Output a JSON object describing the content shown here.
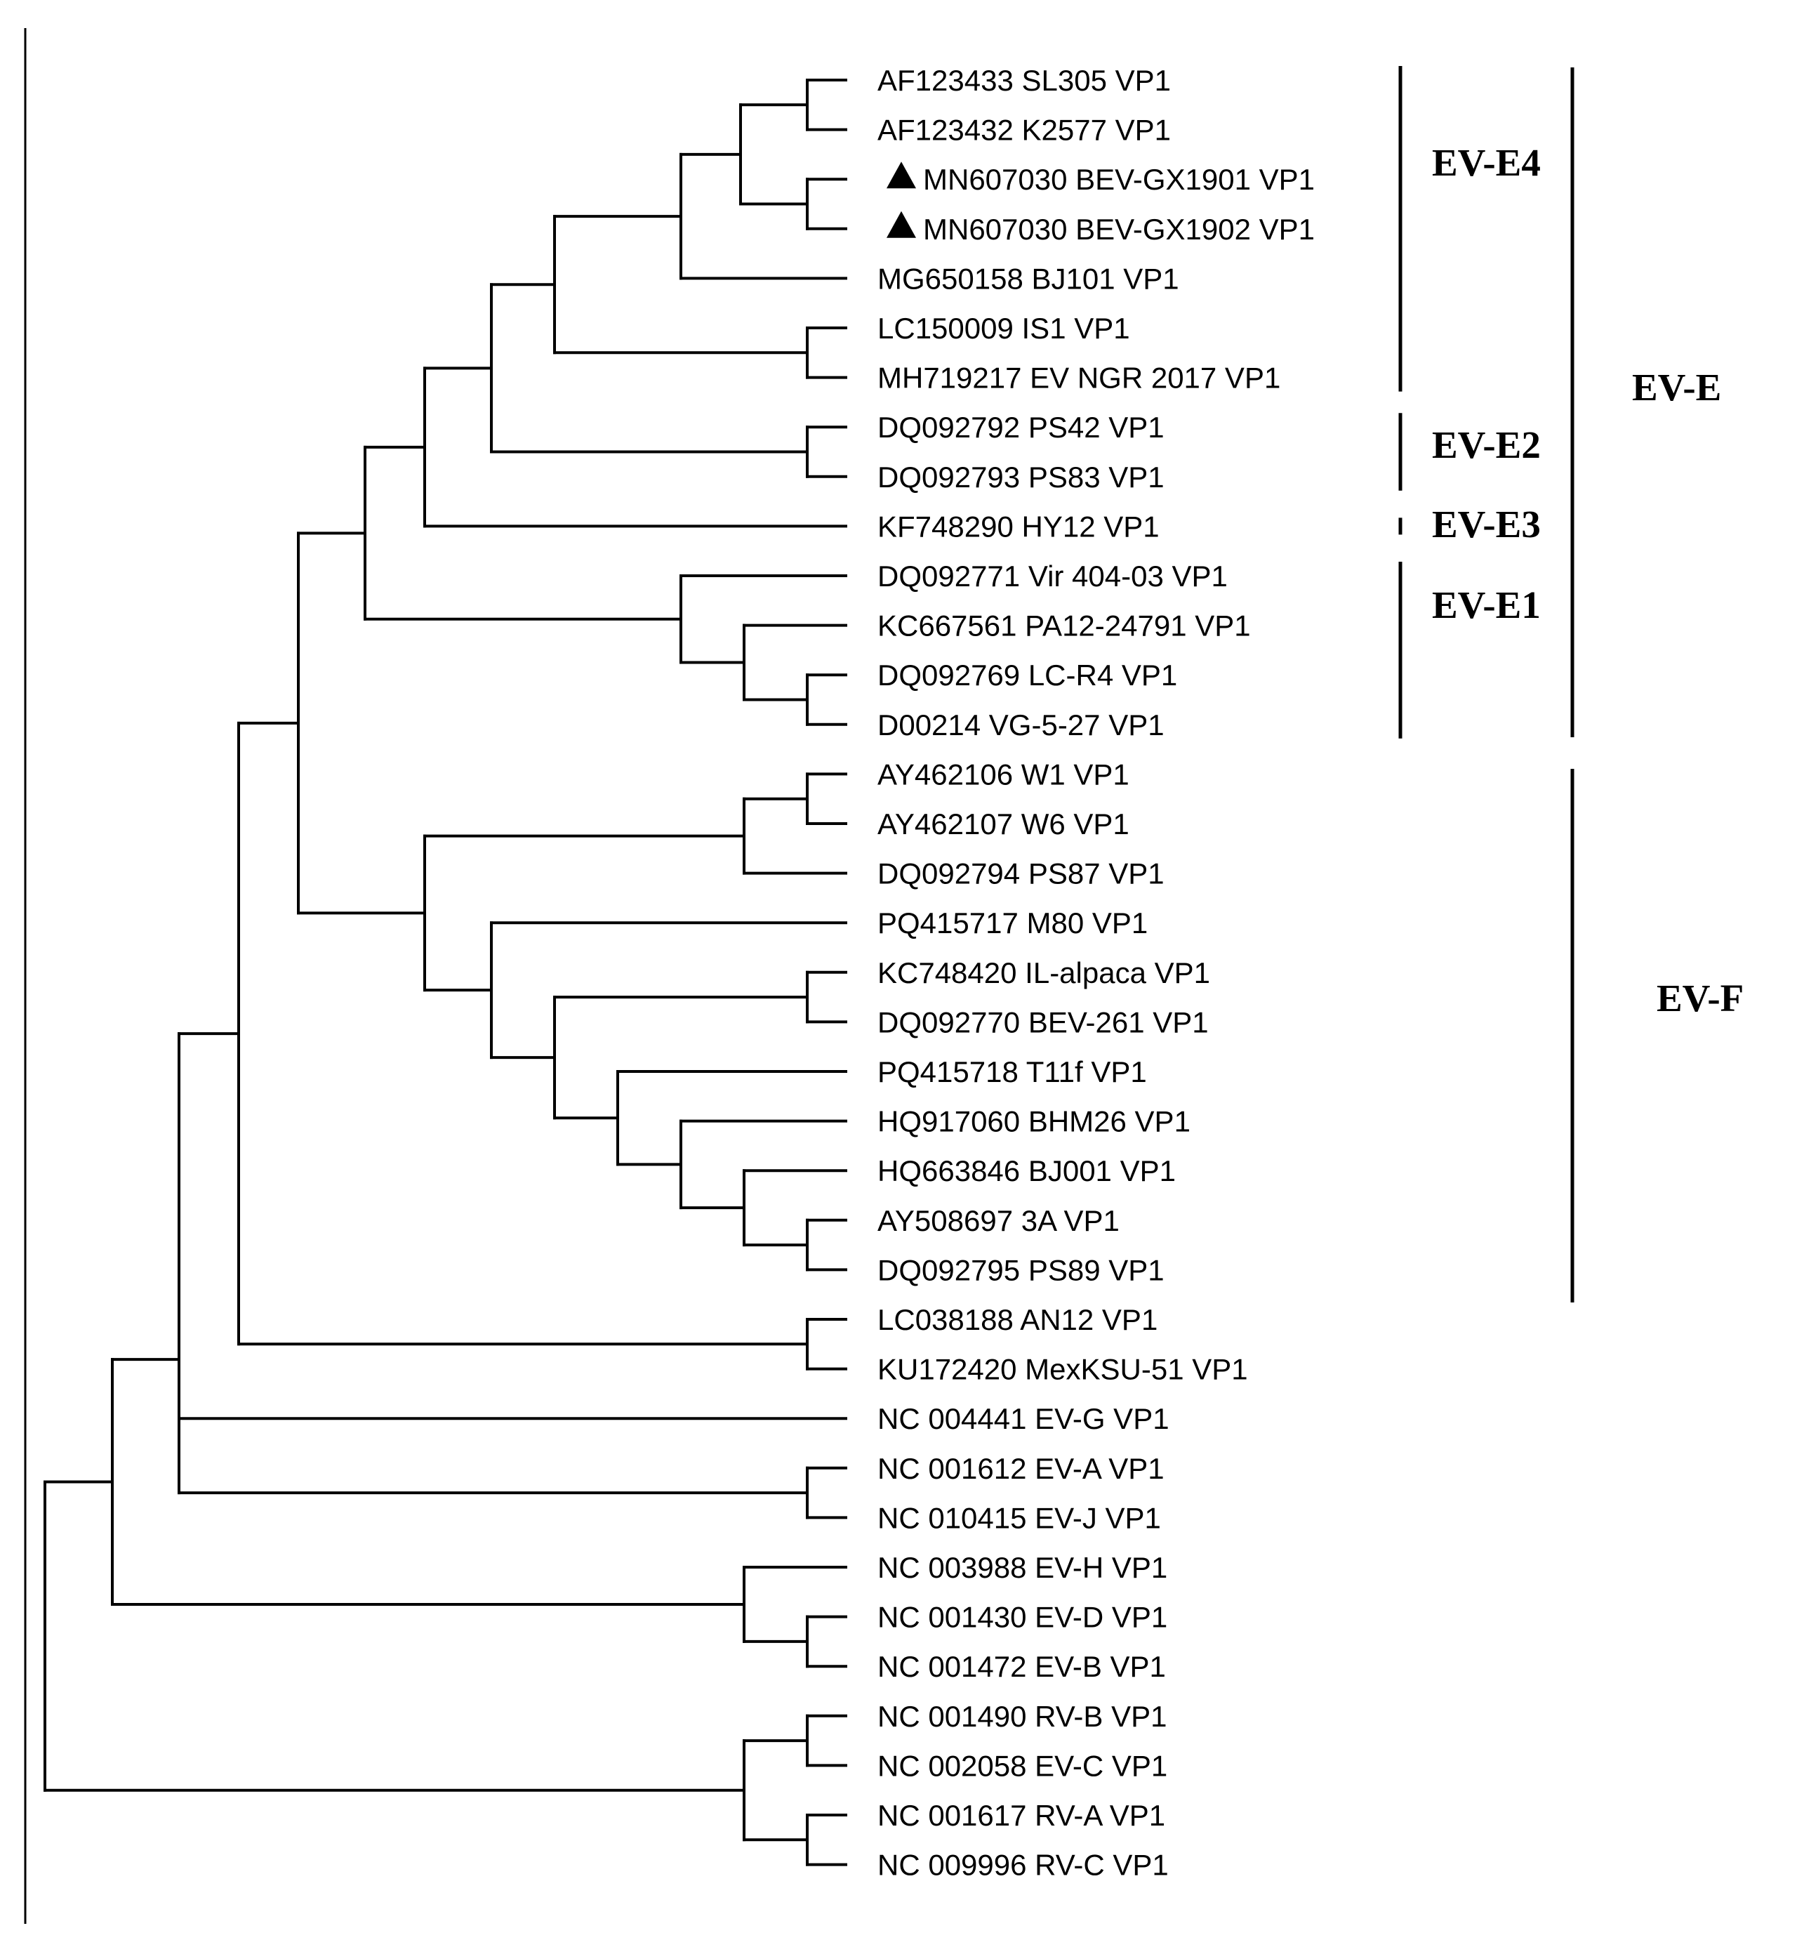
{
  "figure": {
    "leaves": [
      {
        "label": "AF123433 SL305 VP1",
        "marker": false
      },
      {
        "label": "AF123432 K2577 VP1",
        "marker": false
      },
      {
        "label": "MN607030 BEV-GX1901 VP1",
        "marker": true
      },
      {
        "label": "MN607030 BEV-GX1902 VP1",
        "marker": true
      },
      {
        "label": "MG650158 BJ101 VP1",
        "marker": false
      },
      {
        "label": "LC150009 IS1 VP1",
        "marker": false
      },
      {
        "label": "MH719217 EV NGR 2017 VP1",
        "marker": false
      },
      {
        "label": "DQ092792 PS42 VP1",
        "marker": false
      },
      {
        "label": "DQ092793 PS83 VP1",
        "marker": false
      },
      {
        "label": "KF748290 HY12 VP1",
        "marker": false
      },
      {
        "label": "DQ092771 Vir 404-03 VP1",
        "marker": false
      },
      {
        "label": "KC667561 PA12-24791 VP1",
        "marker": false
      },
      {
        "label": "DQ092769 LC-R4 VP1",
        "marker": false
      },
      {
        "label": "D00214 VG-5-27 VP1",
        "marker": false
      },
      {
        "label": "AY462106 W1 VP1",
        "marker": false
      },
      {
        "label": "AY462107 W6 VP1",
        "marker": false
      },
      {
        "label": "DQ092794 PS87 VP1",
        "marker": false
      },
      {
        "label": "PQ415717 M80 VP1",
        "marker": false
      },
      {
        "label": "KC748420 IL-alpaca VP1",
        "marker": false
      },
      {
        "label": "DQ092770 BEV-261 VP1",
        "marker": false
      },
      {
        "label": "PQ415718 T11f VP1",
        "marker": false
      },
      {
        "label": "HQ917060 BHM26 VP1",
        "marker": false
      },
      {
        "label": "HQ663846 BJ001 VP1",
        "marker": false
      },
      {
        "label": "AY508697 3A VP1",
        "marker": false
      },
      {
        "label": "DQ092795 PS89 VP1",
        "marker": false
      },
      {
        "label": "LC038188 AN12 VP1",
        "marker": false
      },
      {
        "label": "KU172420 MexKSU-51 VP1",
        "marker": false
      },
      {
        "label": "NC 004441 EV-G VP1",
        "marker": false
      },
      {
        "label": "NC 001612 EV-A VP1",
        "marker": false
      },
      {
        "label": "NC 010415 EV-J VP1",
        "marker": false
      },
      {
        "label": "NC 003988 EV-H VP1",
        "marker": false
      },
      {
        "label": "NC 001430 EV-D VP1",
        "marker": false
      },
      {
        "label": "NC 001472 EV-B VP1",
        "marker": false
      },
      {
        "label": "NC 001490 RV-B VP1",
        "marker": false
      },
      {
        "label": "NC 002058 EV-C VP1",
        "marker": false
      },
      {
        "label": "NC 001617 RV-A VP1",
        "marker": false
      },
      {
        "label": "NC 009996 RV-C VP1",
        "marker": false
      }
    ],
    "marker_icon": "filled-triangle-icon",
    "subgroups": [
      {
        "label": "EV-E4",
        "first_leaf": 0,
        "last_leaf": 6
      },
      {
        "label": "EV-E2",
        "first_leaf": 7,
        "last_leaf": 8
      },
      {
        "label": "EV-E3",
        "first_leaf": 9,
        "last_leaf": 9
      },
      {
        "label": "EV-E1",
        "first_leaf": 10,
        "last_leaf": 13
      }
    ],
    "groups": [
      {
        "label": "EV-E",
        "first_leaf": 0,
        "last_leaf": 13
      },
      {
        "label": "EV-F",
        "first_leaf": 14,
        "last_leaf": 24
      }
    ]
  }
}
